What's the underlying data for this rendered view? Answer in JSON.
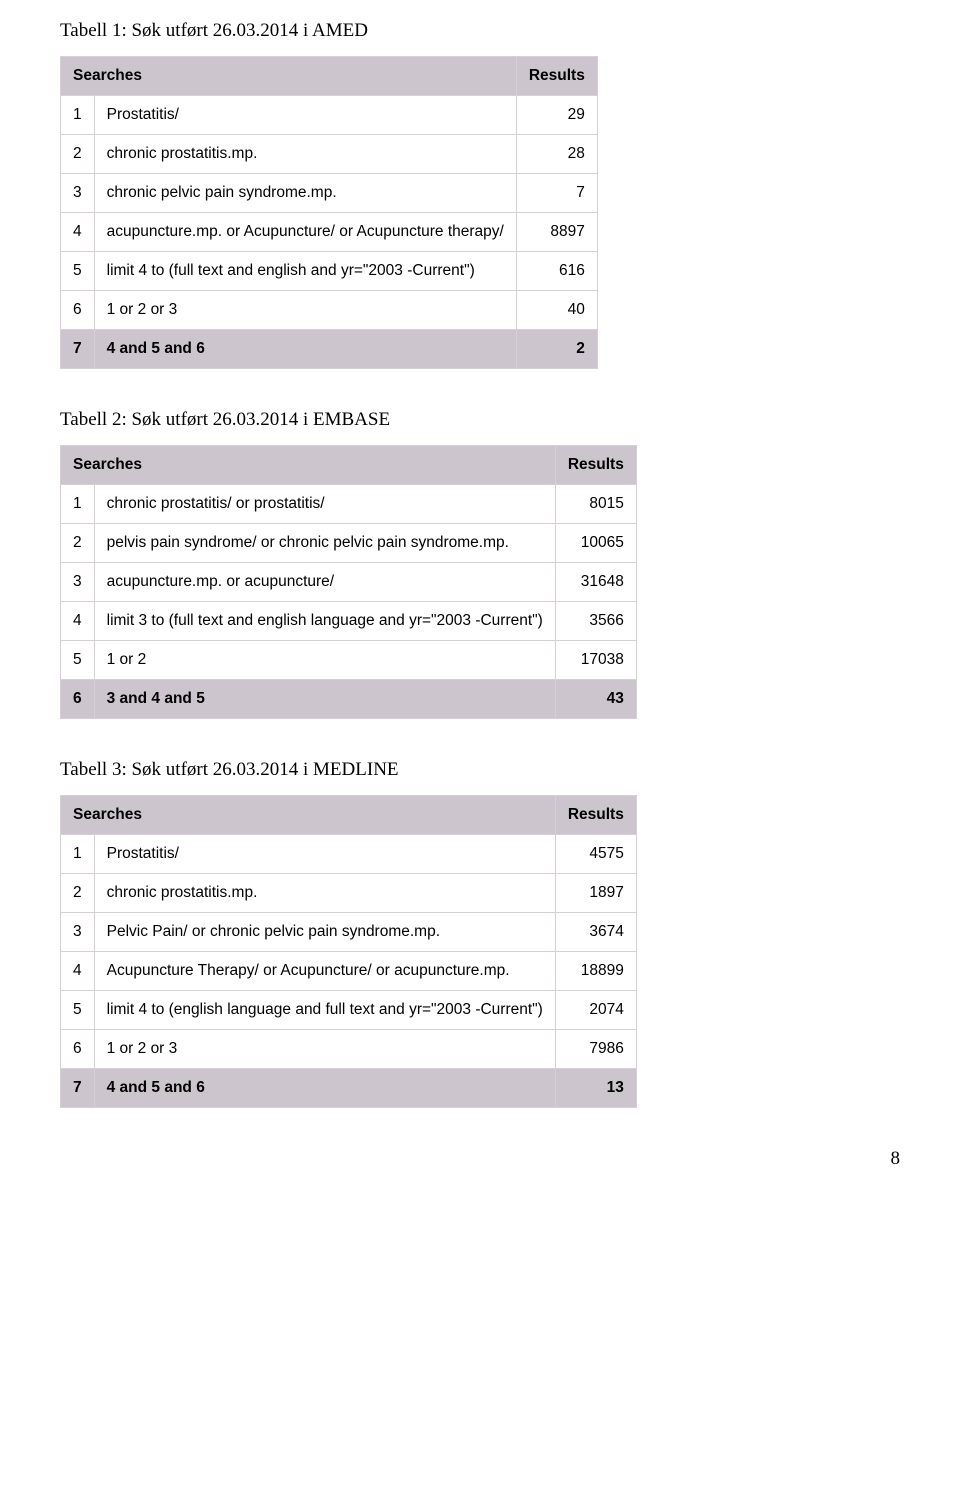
{
  "headers": {
    "searches": "Searches",
    "results": "Results"
  },
  "page_number": "8",
  "table1": {
    "caption": "Tabell 1: Søk utført 26.03.2014 i AMED",
    "rows": [
      {
        "n": "1",
        "q": "Prostatitis/",
        "r": "29"
      },
      {
        "n": "2",
        "q": "chronic prostatitis.mp.",
        "r": "28"
      },
      {
        "n": "3",
        "q": "chronic pelvic pain syndrome.mp.",
        "r": "7"
      },
      {
        "n": "4",
        "q": "acupuncture.mp. or Acupuncture/ or Acupuncture therapy/",
        "r": "8897"
      },
      {
        "n": "5",
        "q": "limit 4 to (full text and english and yr=\"2003 -Current\")",
        "r": "616"
      },
      {
        "n": "6",
        "q": "1 or 2 or 3",
        "r": "40"
      }
    ],
    "foot": {
      "n": "7",
      "q": "4 and 5 and 6",
      "r": "2"
    }
  },
  "table2": {
    "caption": "Tabell 2: Søk utført 26.03.2014 i EMBASE",
    "rows": [
      {
        "n": "1",
        "q": "chronic prostatitis/ or prostatitis/",
        "r": "8015"
      },
      {
        "n": "2",
        "q": "pelvis pain syndrome/ or chronic pelvic pain syndrome.mp.",
        "r": "10065"
      },
      {
        "n": "3",
        "q": "acupuncture.mp. or acupuncture/",
        "r": "31648"
      },
      {
        "n": "4",
        "q": "limit 3 to (full text and english language and yr=\"2003 -Current\")",
        "r": "3566"
      },
      {
        "n": "5",
        "q": "1 or 2",
        "r": "17038"
      }
    ],
    "foot": {
      "n": "6",
      "q": "3 and 4 and 5",
      "r": "43"
    }
  },
  "table3": {
    "caption": "Tabell 3: Søk utført 26.03.2014 i MEDLINE",
    "rows": [
      {
        "n": "1",
        "q": "Prostatitis/",
        "r": "4575"
      },
      {
        "n": "2",
        "q": "chronic prostatitis.mp.",
        "r": "1897"
      },
      {
        "n": "3",
        "q": "Pelvic Pain/ or chronic pelvic pain syndrome.mp.",
        "r": "3674"
      },
      {
        "n": "4",
        "q": "Acupuncture Therapy/ or Acupuncture/ or acupuncture.mp.",
        "r": "18899"
      },
      {
        "n": "5",
        "q": "limit 4 to (english language and full text and yr=\"2003 -Current\")",
        "r": "2074"
      },
      {
        "n": "6",
        "q": "1 or 2 or 3",
        "r": "7986"
      }
    ],
    "foot": {
      "n": "7",
      "q": "4 and 5 and 6",
      "r": "13"
    }
  }
}
